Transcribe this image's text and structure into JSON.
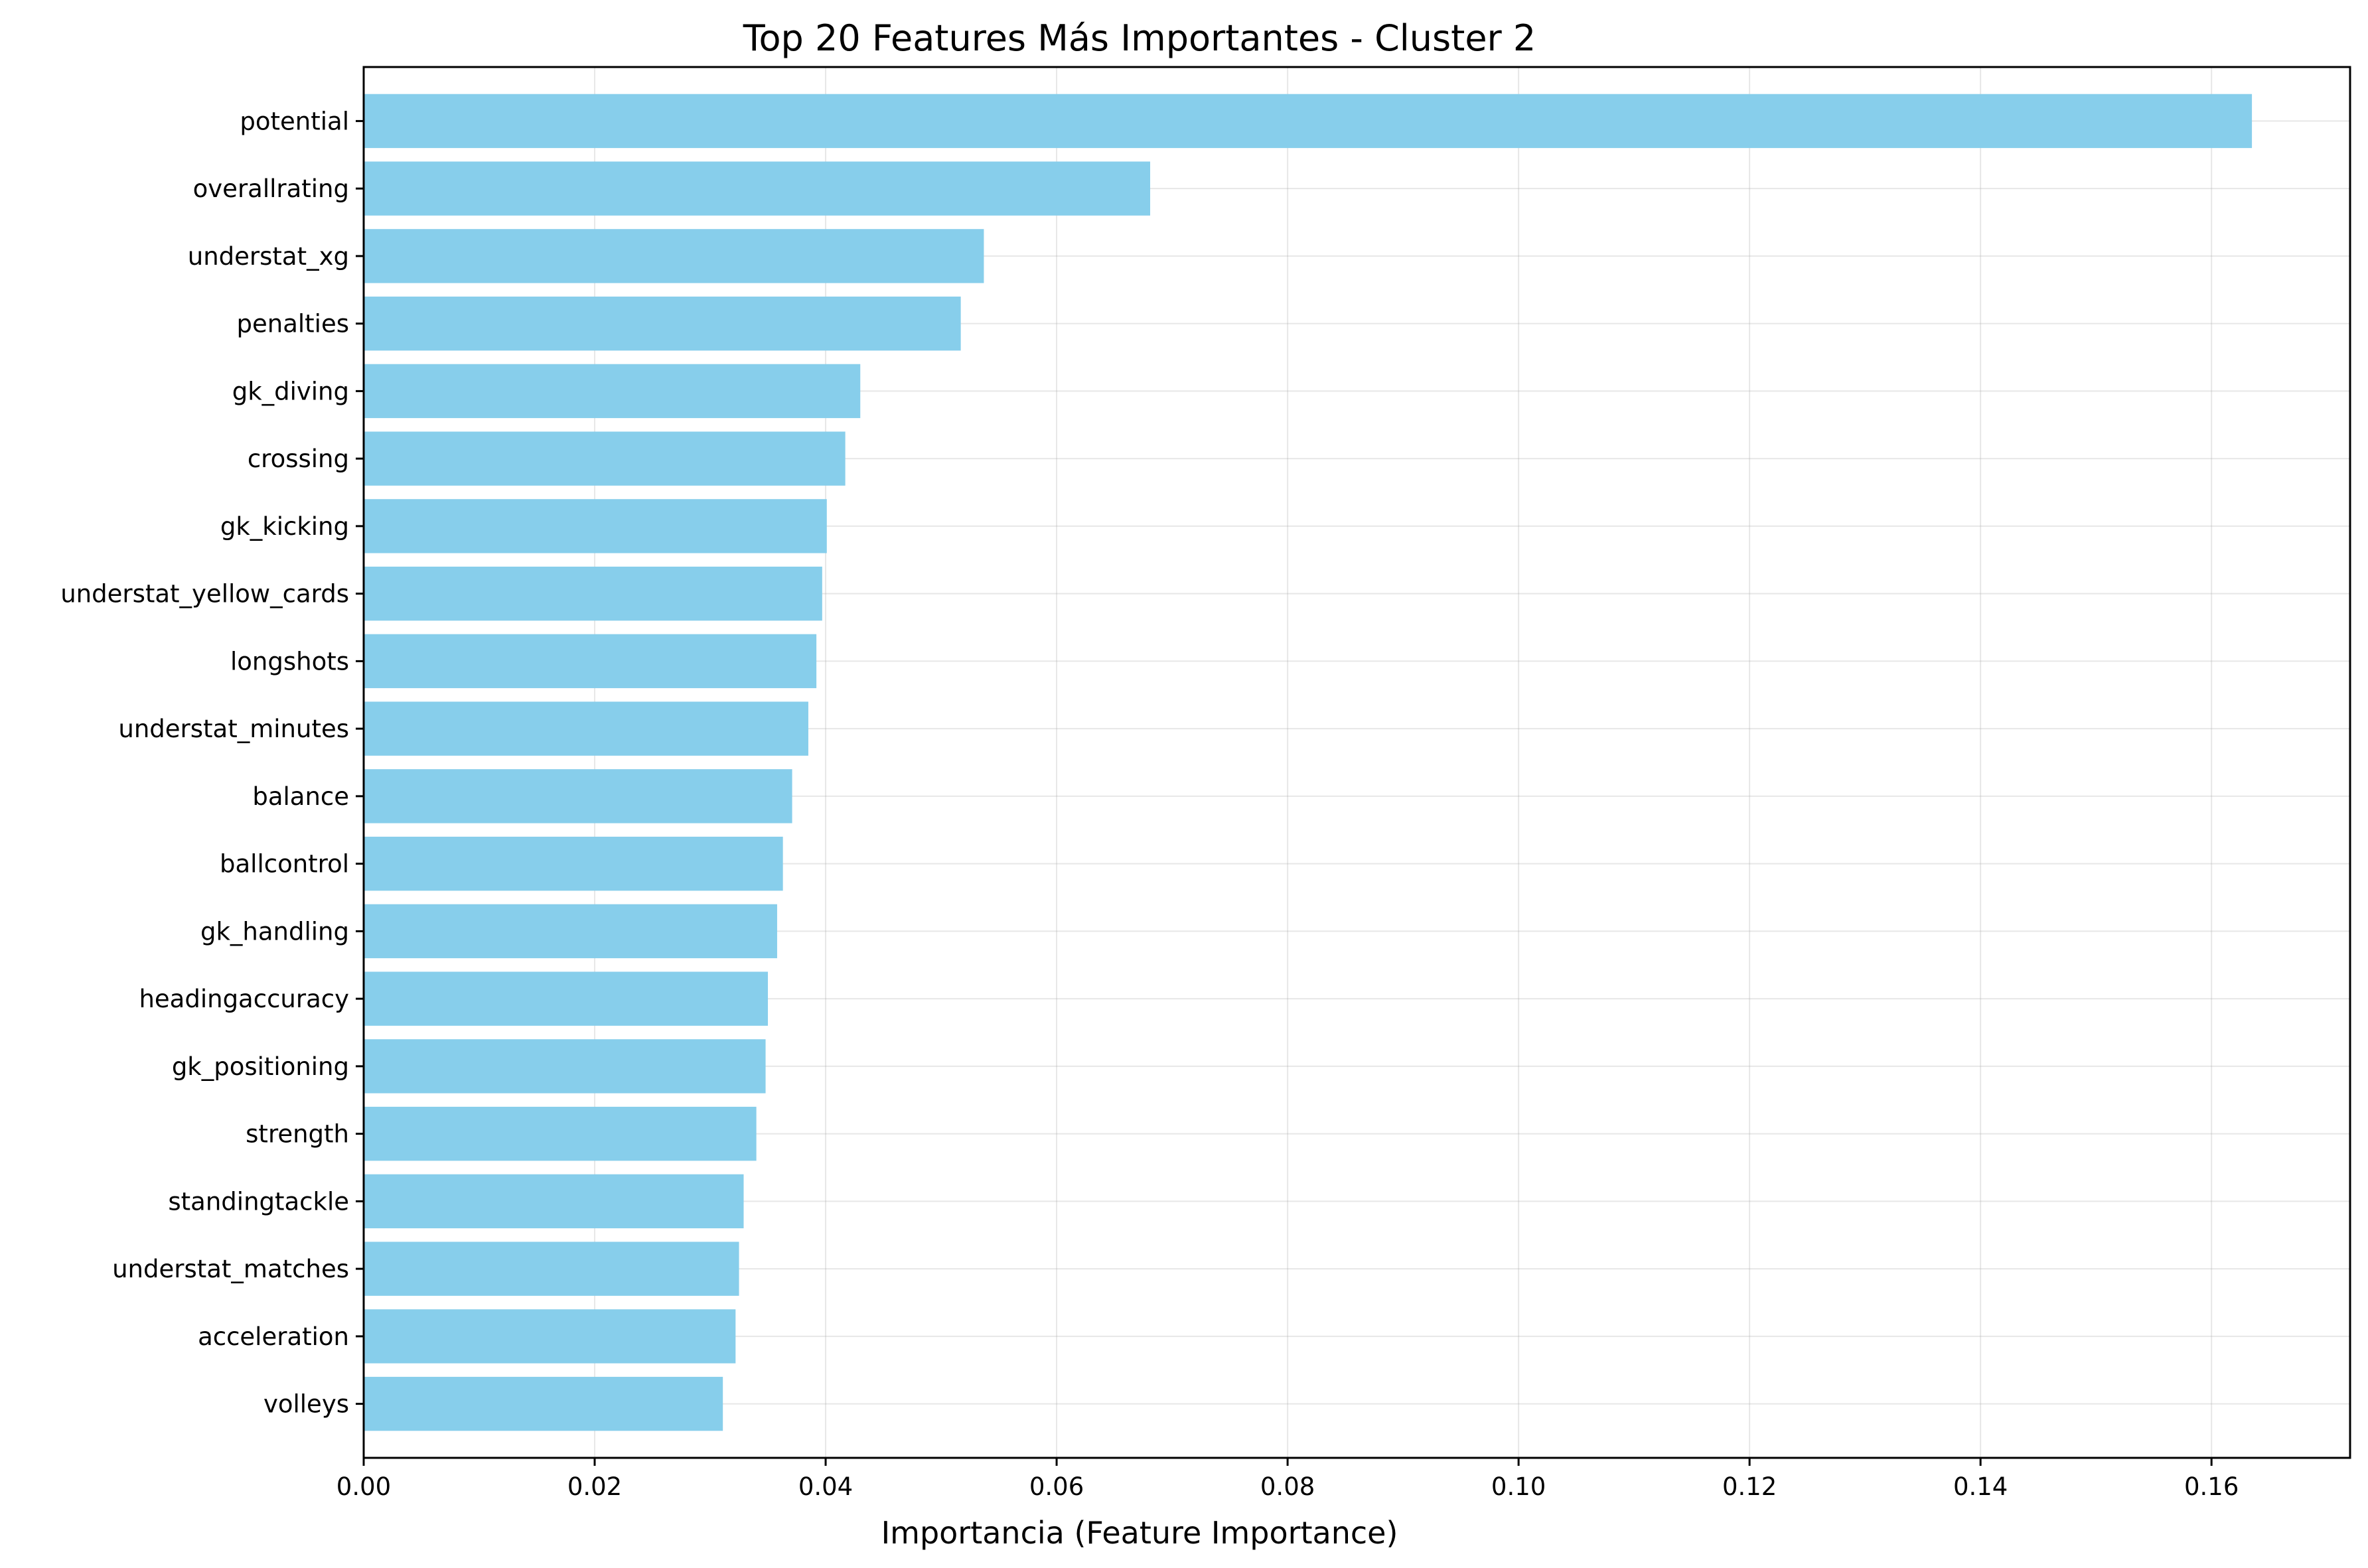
{
  "chart_data": {
    "type": "bar",
    "orientation": "horizontal",
    "title": "Top 20 Features Más Importantes - Cluster 2",
    "xlabel": "Importancia (Feature Importance)",
    "ylabel": "",
    "xlim": [
      0,
      0.172
    ],
    "xticks": [
      0.0,
      0.02,
      0.04,
      0.06,
      0.08,
      0.1,
      0.12,
      0.14,
      0.16
    ],
    "xtick_labels": [
      "0.00",
      "0.02",
      "0.04",
      "0.06",
      "0.08",
      "0.10",
      "0.12",
      "0.14",
      "0.16"
    ],
    "grid": true,
    "bar_color": "#87CEEB",
    "categories": [
      "potential",
      "overallrating",
      "understat_xg",
      "penalties",
      "gk_diving",
      "crossing",
      "gk_kicking",
      "understat_yellow_cards",
      "longshots",
      "understat_minutes",
      "balance",
      "ballcontrol",
      "gk_handling",
      "headingaccuracy",
      "gk_positioning",
      "strength",
      "standingtackle",
      "understat_matches",
      "acceleration",
      "volleys"
    ],
    "values": [
      0.1635,
      0.0681,
      0.0537,
      0.0517,
      0.043,
      0.0417,
      0.0401,
      0.0397,
      0.0392,
      0.0385,
      0.0371,
      0.0363,
      0.0358,
      0.035,
      0.0348,
      0.034,
      0.0329,
      0.0325,
      0.0322,
      0.0311
    ]
  }
}
